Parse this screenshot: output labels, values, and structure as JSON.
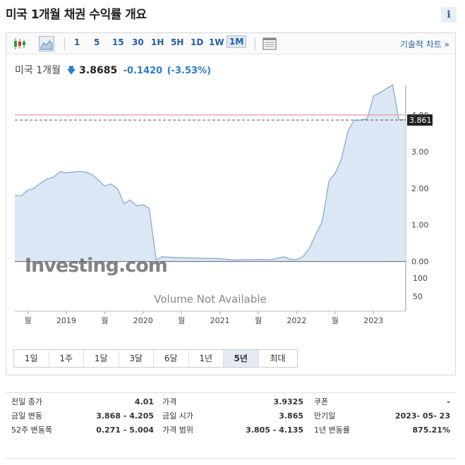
{
  "header": {
    "title": "미국 1개월 채권 수익률 개요",
    "info_icon": "i"
  },
  "toolbar": {
    "candlestick_icon": "candlestick-chart-icon",
    "area_icon": "area-chart-icon",
    "periods": [
      "1",
      "5",
      "15",
      "30",
      "1H",
      "5H",
      "1D",
      "1W",
      "1M"
    ],
    "active_period": "1M",
    "table_icon": "table-icon",
    "tech_chart_label": "기술적 차트 »"
  },
  "quote": {
    "name": "미국 1개월",
    "arrow": "🡇",
    "price": "3.8685",
    "change": "-0.1420",
    "change_pct": "(-3.53%)"
  },
  "chart_data": {
    "type": "area",
    "watermark": "Investing.com",
    "volume_note": "Volume Not Available",
    "current_value_label": "3.861",
    "current_value": 3.861,
    "reference_line": 4.0,
    "y_ticks": [
      "4.00",
      "3.00",
      "2.00",
      "1.00",
      "0.00"
    ],
    "ylim": [
      -0.2,
      5.0
    ],
    "volume_ticks": [
      "100",
      "50"
    ],
    "x_tick_labels": [
      "월",
      "2019",
      "월",
      "2020",
      "월",
      "2021",
      "월",
      "2022",
      "월",
      "2023"
    ],
    "x_start": 2018.33,
    "x_end": 2023.42,
    "x_tick_positions": [
      2018.5,
      2019.0,
      2019.5,
      2020.0,
      2020.5,
      2021.0,
      2021.5,
      2022.0,
      2022.5,
      2023.0
    ],
    "series": [
      {
        "x": [
          2018.33,
          2018.42,
          2018.5,
          2018.58,
          2018.67,
          2018.75,
          2018.83,
          2018.92,
          2019.0,
          2019.08,
          2019.17,
          2019.25,
          2019.33,
          2019.42,
          2019.5,
          2019.58,
          2019.67,
          2019.75,
          2019.83,
          2019.92,
          2020.0,
          2020.08,
          2020.17,
          2020.25,
          2020.33,
          2020.5,
          2020.75,
          2021.0,
          2021.17,
          2021.33,
          2021.5,
          2021.67,
          2021.83,
          2021.92,
          2022.0,
          2022.08,
          2022.17,
          2022.25,
          2022.33,
          2022.42,
          2022.5,
          2022.58,
          2022.67,
          2022.75,
          2022.83,
          2022.92,
          2023.0,
          2023.08,
          2023.17,
          2023.25,
          2023.33,
          2023.42
        ],
        "y": [
          1.8,
          1.8,
          1.95,
          2.0,
          2.15,
          2.25,
          2.3,
          2.45,
          2.42,
          2.44,
          2.46,
          2.44,
          2.38,
          2.22,
          2.06,
          2.12,
          1.98,
          1.58,
          1.68,
          1.52,
          1.55,
          1.45,
          0.05,
          0.13,
          0.12,
          0.1,
          0.09,
          0.08,
          0.04,
          0.05,
          0.06,
          0.05,
          0.13,
          0.06,
          0.05,
          0.13,
          0.38,
          0.75,
          1.08,
          2.2,
          2.4,
          2.78,
          3.58,
          3.86,
          3.86,
          3.9,
          4.52,
          4.6,
          4.72,
          4.82,
          3.87,
          3.87
        ]
      }
    ]
  },
  "range_tabs": {
    "items": [
      "1일",
      "1주",
      "1달",
      "3달",
      "6달",
      "1년",
      "5년",
      "최대"
    ],
    "active": "5년"
  },
  "stats": {
    "col1": [
      {
        "label": "전일 종가",
        "value": "4.01"
      },
      {
        "label": "금일 변동",
        "value": "3.868 - 4.205"
      },
      {
        "label": "52주 변동폭",
        "value": "0.271 - 5.004"
      }
    ],
    "col2": [
      {
        "label": "가격",
        "value": "3.9325"
      },
      {
        "label": "금일 시가",
        "value": "3.865"
      },
      {
        "label": "가격 범위",
        "value": "3.805 - 4.135"
      }
    ],
    "col3": [
      {
        "label": "쿠폰",
        "value": "-"
      },
      {
        "label": "만기일",
        "value": "2023- 05- 23"
      },
      {
        "label": "1년 변동률",
        "value": "875.21%"
      }
    ]
  },
  "colors": {
    "accent": "#1f5fa8",
    "line": "#7fa7d4",
    "fill": "#dbe7f4",
    "ref_line": "#e8a0a0",
    "negative": "#2a7bd1"
  }
}
